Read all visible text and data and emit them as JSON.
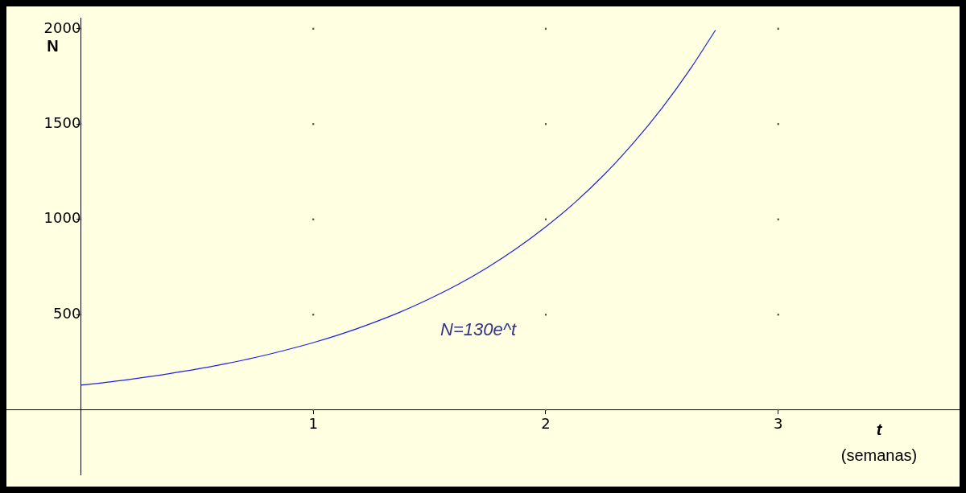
{
  "chart_data": {
    "type": "line",
    "xlabel": "t\n(semanas)",
    "ylabel": "N",
    "x": [
      0,
      0.125,
      0.25,
      0.375,
      0.5,
      0.625,
      0.75,
      0.875,
      1,
      1.125,
      1.25,
      1.375,
      1.5,
      1.625,
      1.75,
      1.875,
      2,
      2.125,
      2.25,
      2.375,
      2.5,
      2.625,
      2.73
    ],
    "series": [
      {
        "color": "#2020e0",
        "values": [
          130,
          147,
          167,
          189,
          214,
          243,
          275,
          312,
          353,
          400,
          454,
          514,
          583,
          660,
          748,
          848,
          961,
          1088,
          1233,
          1398,
          1584,
          1795,
          1993
        ]
      }
    ],
    "xlim": [
      -0.32,
      3.78
    ],
    "ylim": [
      -340,
      2055
    ],
    "xticks": [
      1,
      2,
      3
    ],
    "yticks": [
      500,
      1000,
      1500,
      2000
    ],
    "grid": true,
    "marker": "none",
    "line_style": "solid",
    "annotations": [
      "N=130e^t"
    ]
  }
}
